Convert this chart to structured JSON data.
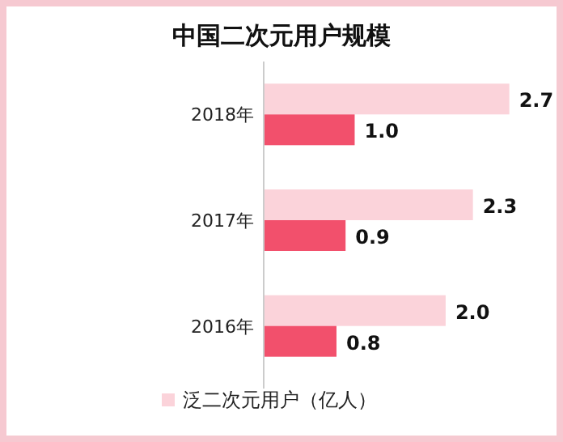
{
  "chart_data": {
    "type": "bar",
    "orientation": "horizontal",
    "title": "中国二次元用户规模",
    "categories": [
      "2018年",
      "2017年",
      "2016年"
    ],
    "series": [
      {
        "name": "泛二次元用户（亿人）",
        "color": "#fbd3da",
        "values": [
          2.7,
          2.3,
          2.0
        ],
        "value_labels": [
          "2.7",
          "2.3",
          "2.0"
        ]
      },
      {
        "color": "#f2506c",
        "values": [
          1.0,
          0.9,
          0.8
        ],
        "value_labels": [
          "1.0",
          "0.9",
          "0.8"
        ]
      }
    ],
    "legend": "bottom"
  }
}
